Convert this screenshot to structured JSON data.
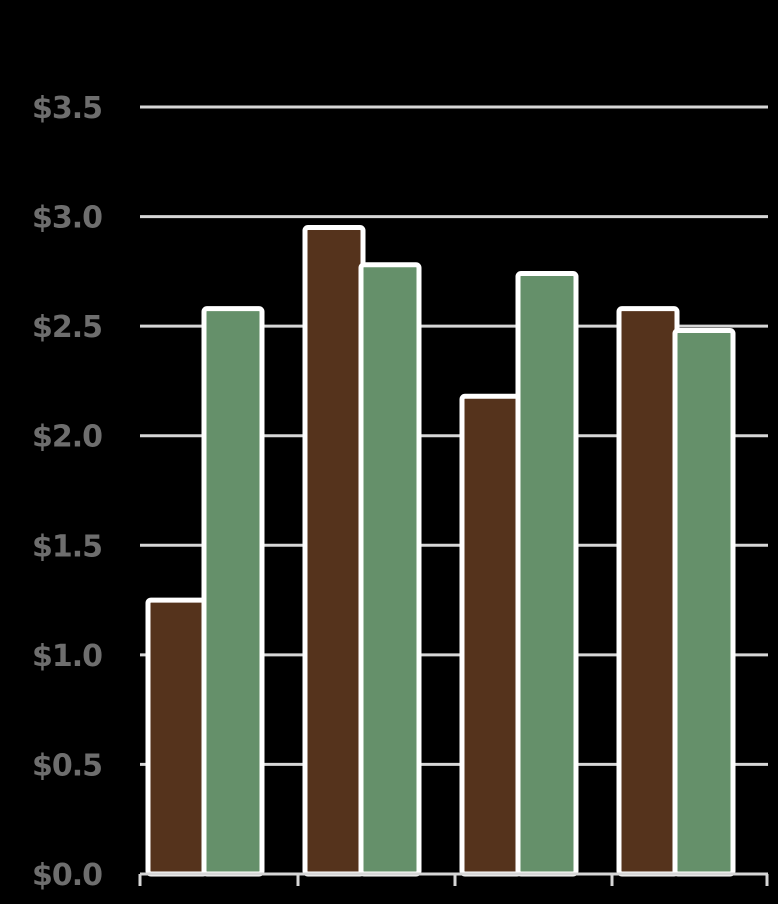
{
  "chart_data": {
    "type": "bar",
    "title": "",
    "xlabel": "",
    "ylabel": "",
    "ylim": [
      0,
      3.5
    ],
    "y_ticks": [
      "$0.0",
      "$0.5",
      "$1.0",
      "$1.5",
      "$2.0",
      "$2.5",
      "$3.0",
      "$3.5"
    ],
    "y_tick_values": [
      0,
      0.5,
      1.0,
      1.5,
      2.0,
      2.5,
      3.0,
      3.5
    ],
    "grid": true,
    "legend": "none",
    "categories": [
      "",
      "",
      "",
      ""
    ],
    "series": [
      {
        "values": [
          1.25,
          2.95,
          2.18,
          2.58
        ]
      },
      {
        "values": [
          2.58,
          2.78,
          2.74,
          2.48
        ]
      }
    ]
  },
  "colors": {
    "background": "#000000",
    "series_1": "#55331c",
    "series_2": "#65906a",
    "bar_outline": "#ffffff",
    "gridline": "#d6d6d6",
    "tick_label": "#6e6e6e",
    "axis": "#d6d6d6"
  }
}
